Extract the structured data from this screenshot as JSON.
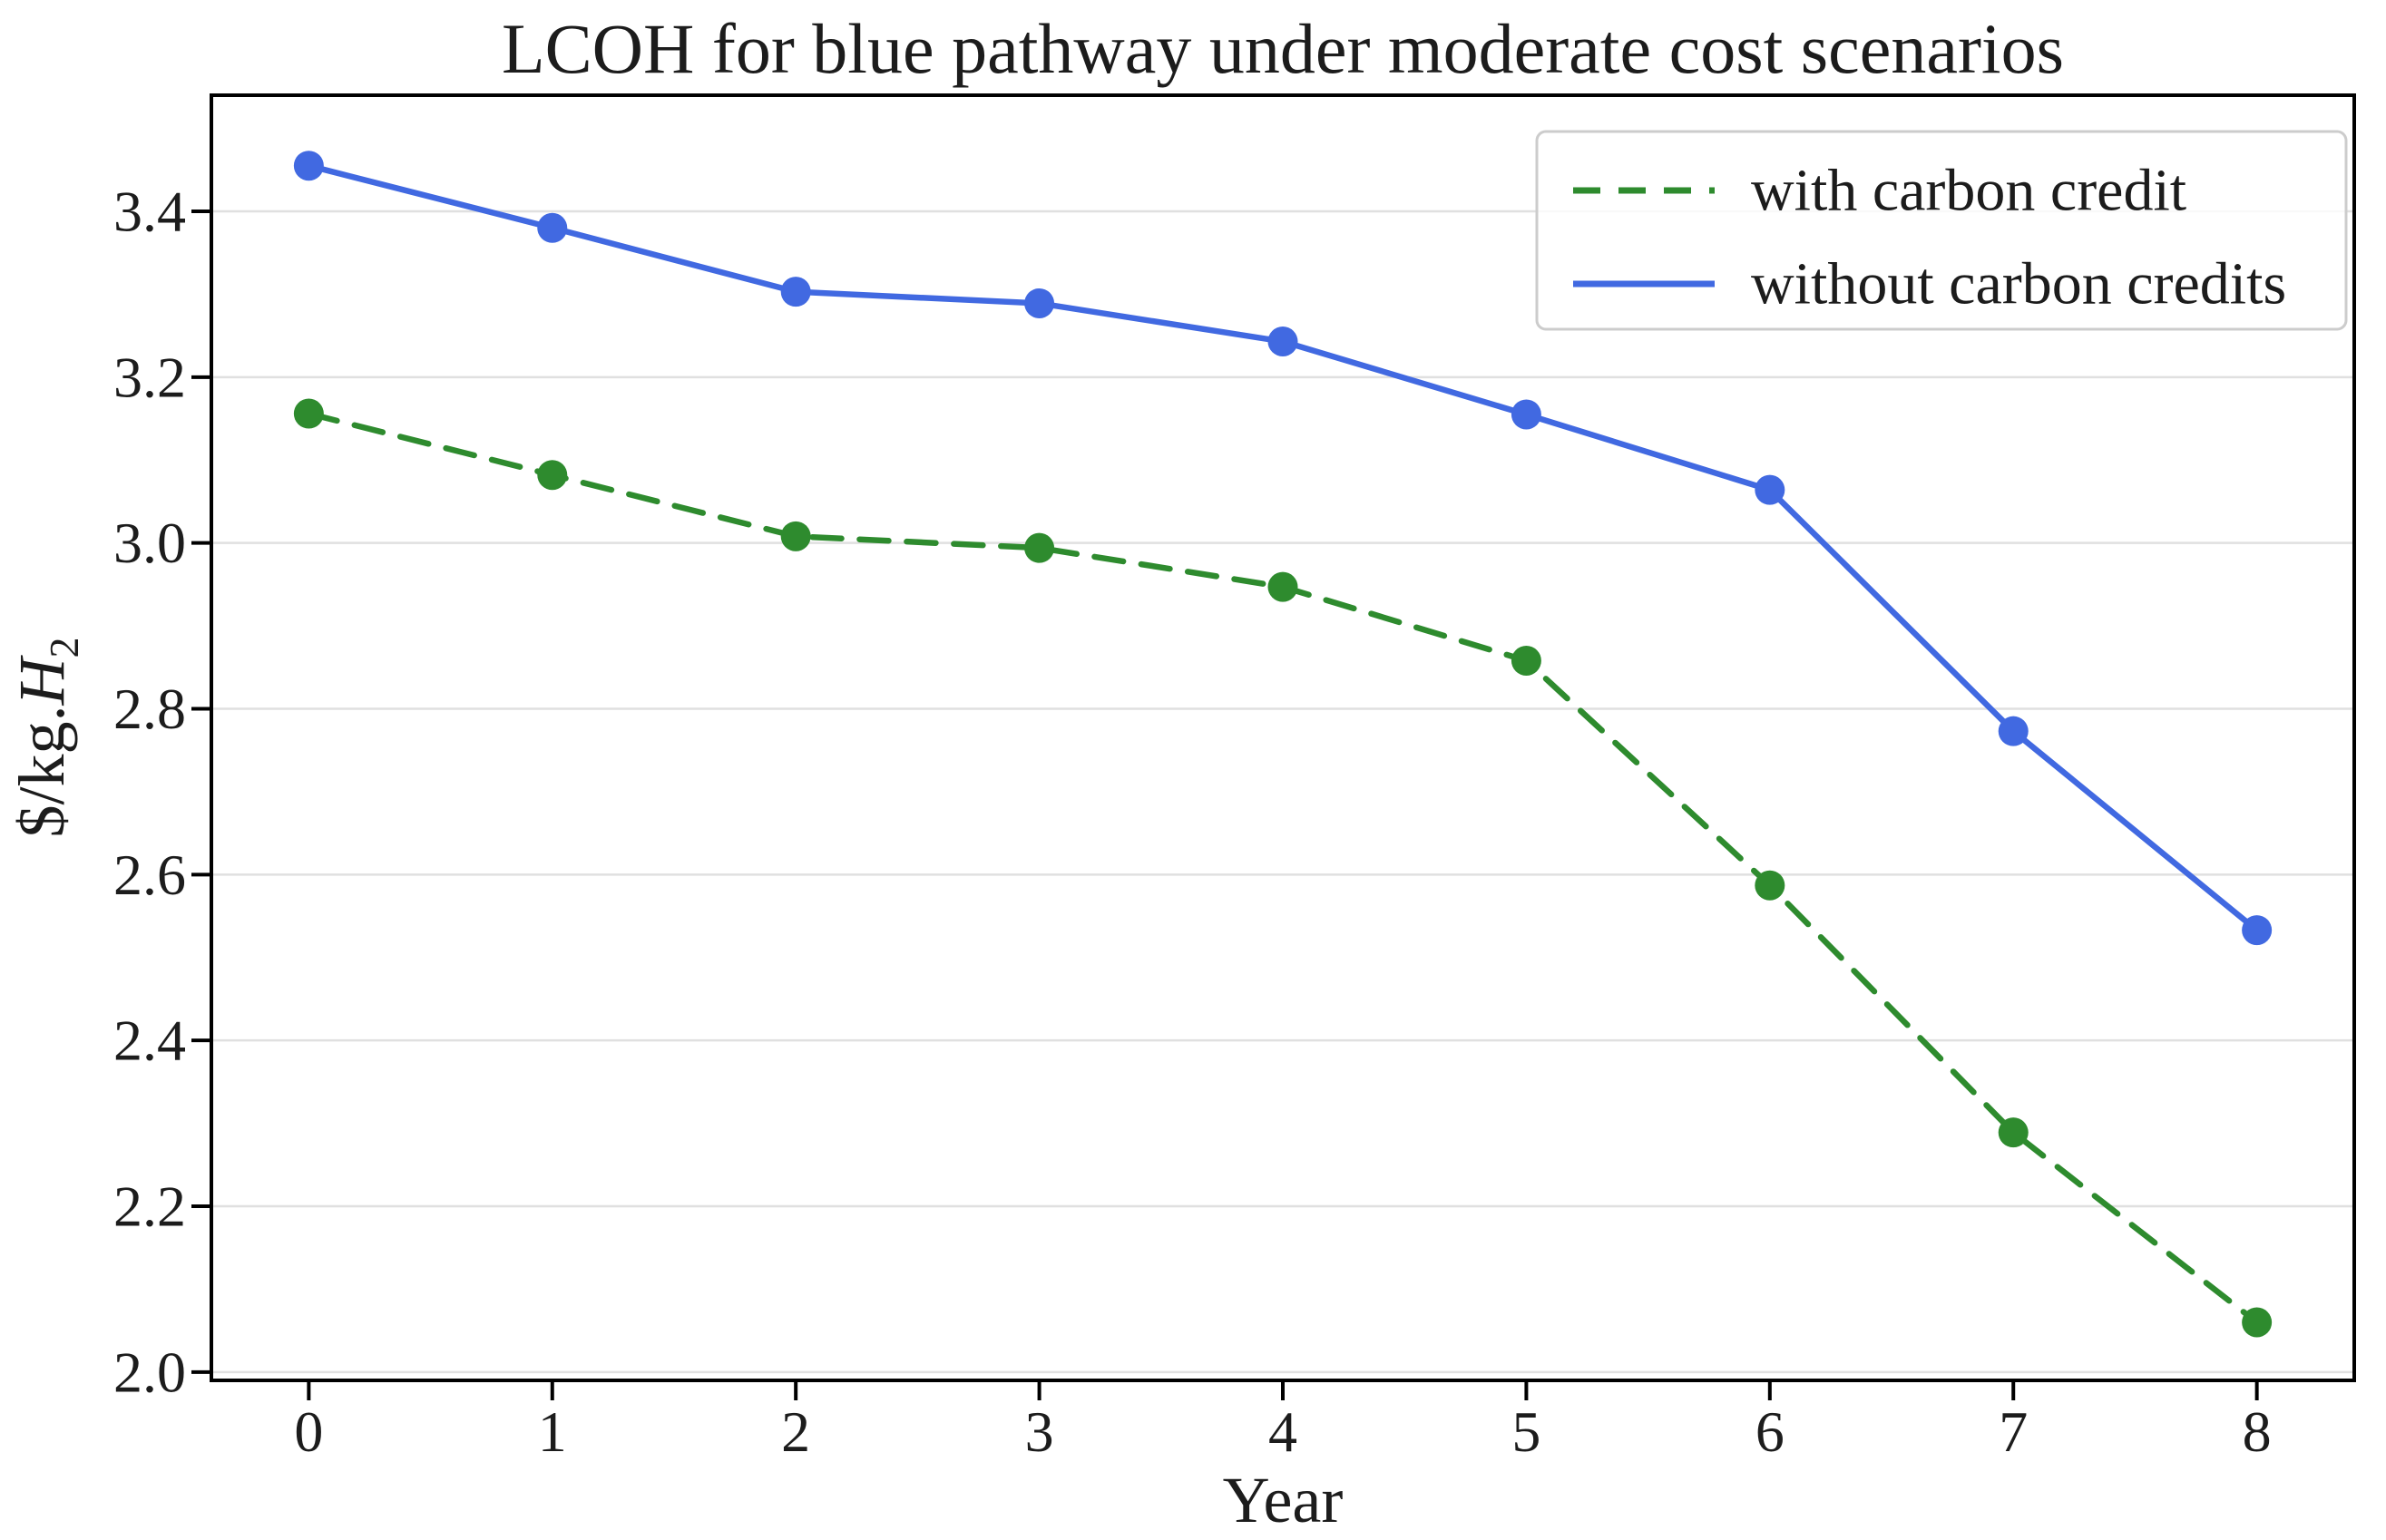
{
  "chart_data": {
    "type": "line",
    "title": "LCOH for blue pathway under moderate cost scenarios",
    "xlabel": "Year",
    "ylabel": {
      "prefix": "$/kg.",
      "symbol": "H",
      "subscript": "2"
    },
    "x": [
      0,
      1,
      2,
      3,
      4,
      5,
      6,
      7,
      8
    ],
    "series": [
      {
        "name": "with carbon credit",
        "color": "#2e8b2e",
        "style": "dashed",
        "marker": "circle",
        "values": [
          3.156,
          3.082,
          3.008,
          2.994,
          2.947,
          2.858,
          2.587,
          2.289,
          2.06
        ]
      },
      {
        "name": "without carbon credits",
        "color": "#4169e1",
        "style": "solid",
        "marker": "circle",
        "values": [
          3.455,
          3.38,
          3.303,
          3.289,
          3.243,
          3.155,
          3.064,
          2.773,
          2.533
        ]
      }
    ],
    "xticks": [
      0,
      1,
      2,
      3,
      4,
      5,
      6,
      7,
      8
    ],
    "yticks": [
      2.0,
      2.2,
      2.4,
      2.6,
      2.8,
      3.0,
      3.2,
      3.4
    ],
    "xlim": [
      -0.4,
      8.4
    ],
    "ylim": [
      1.99,
      3.54
    ],
    "grid": "horizontal",
    "grid_color": "#e0e0e0",
    "legend_position": "upper right",
    "spine_color": "#000000"
  }
}
